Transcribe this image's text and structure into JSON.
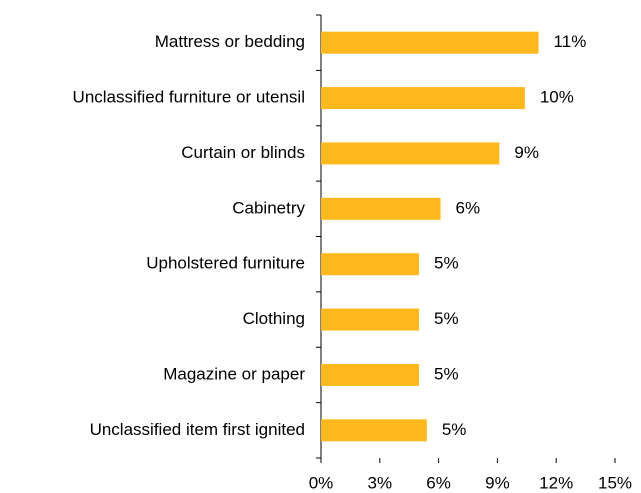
{
  "chart_data": {
    "type": "bar",
    "orientation": "horizontal",
    "categories": [
      "Mattress or bedding",
      "Unclassified furniture or utensil",
      "Curtain or blinds",
      "Cabinetry",
      "Upholstered furniture",
      "Clothing",
      "Magazine or paper",
      "Unclassified item first ignited"
    ],
    "values": [
      11.1,
      10.4,
      9.1,
      6.1,
      5.0,
      5.0,
      5.0,
      5.4
    ],
    "value_labels": [
      "11%",
      "10%",
      "9%",
      "6%",
      "5%",
      "5%",
      "5%",
      "5%"
    ],
    "color": "#ffb81c",
    "xlim": [
      0,
      15
    ],
    "xticks": [
      {
        "value": 0,
        "label": "0%"
      },
      {
        "value": 3,
        "label": "3%"
      },
      {
        "value": 6,
        "label": "6%"
      },
      {
        "value": 9,
        "label": "9%"
      },
      {
        "value": 12,
        "label": "12%"
      },
      {
        "value": 15,
        "label": "15%"
      }
    ],
    "grid": false
  }
}
